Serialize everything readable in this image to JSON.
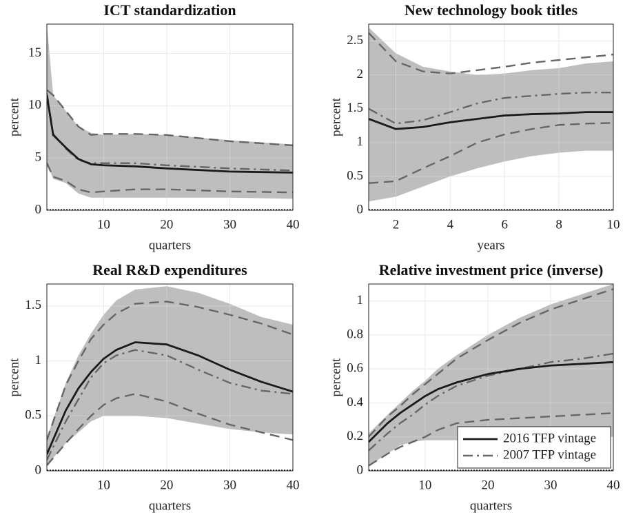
{
  "chart_data": [
    {
      "type": "line",
      "title": "ICT standardization",
      "xlabel": "quarters",
      "ylabel": "percent",
      "x": [
        1,
        2,
        4,
        6,
        8,
        10,
        15,
        20,
        30,
        40
      ],
      "xlim": [
        1,
        40
      ],
      "xticks": [
        10,
        20,
        30,
        40
      ],
      "ylim": [
        0,
        17.8
      ],
      "yticks": [
        0,
        5,
        10,
        15
      ],
      "grid": true,
      "band": {
        "color": "#bebebe",
        "upper": [
          17.8,
          11,
          9.5,
          8,
          7.4,
          7.2,
          7.3,
          7.2,
          6.7,
          6.3
        ],
        "lower": [
          4.5,
          3,
          2.6,
          1.6,
          1.2,
          1.2,
          1.2,
          1.2,
          1.2,
          1.1
        ]
      },
      "series": [
        {
          "color": "#1a1a1a",
          "style": "solid",
          "values": [
            11,
            7.2,
            6,
            4.9,
            4.4,
            4.3,
            4.2,
            4.0,
            3.7,
            3.6
          ]
        },
        {
          "color": "#666666",
          "style": "dashdot",
          "values": [
            11.2,
            7.3,
            5.9,
            4.8,
            4.5,
            4.5,
            4.5,
            4.3,
            4.0,
            3.8
          ]
        },
        {
          "color": "#666666",
          "style": "dashed",
          "values": [
            11.5,
            11,
            9.5,
            8,
            7.2,
            7.3,
            7.3,
            7.2,
            6.6,
            6.2
          ]
        },
        {
          "color": "#666666",
          "style": "dashed",
          "values": [
            4.5,
            3.2,
            2.8,
            2.0,
            1.7,
            1.8,
            2.0,
            2.0,
            1.8,
            1.7
          ]
        }
      ]
    },
    {
      "type": "line",
      "title": "New technology book titles",
      "xlabel": "years",
      "ylabel": "percent",
      "x": [
        1,
        2,
        3,
        4,
        5,
        6,
        7,
        8,
        9,
        10
      ],
      "xlim": [
        1,
        10
      ],
      "xticks": [
        2,
        4,
        6,
        8,
        10
      ],
      "ylim": [
        0,
        2.75
      ],
      "yticks": [
        0,
        0.5,
        1,
        1.5,
        2,
        2.5
      ],
      "grid": true,
      "band": {
        "color": "#bebebe",
        "upper": [
          2.7,
          2.32,
          2.12,
          2.05,
          2.0,
          2.02,
          2.07,
          2.1,
          2.17,
          2.2
        ],
        "lower": [
          0.13,
          0.2,
          0.35,
          0.5,
          0.62,
          0.72,
          0.8,
          0.85,
          0.88,
          0.88
        ]
      },
      "series": [
        {
          "color": "#1a1a1a",
          "style": "solid",
          "values": [
            1.35,
            1.2,
            1.23,
            1.3,
            1.35,
            1.4,
            1.42,
            1.43,
            1.45,
            1.45
          ]
        },
        {
          "color": "#666666",
          "style": "dashdot",
          "values": [
            1.5,
            1.28,
            1.33,
            1.45,
            1.58,
            1.66,
            1.69,
            1.72,
            1.74,
            1.74
          ]
        },
        {
          "color": "#666666",
          "style": "dashed",
          "values": [
            2.62,
            2.2,
            2.05,
            2.02,
            2.07,
            2.12,
            2.18,
            2.22,
            2.26,
            2.3
          ]
        },
        {
          "color": "#666666",
          "style": "dashed",
          "values": [
            0.4,
            0.43,
            0.62,
            0.8,
            1.0,
            1.12,
            1.2,
            1.26,
            1.28,
            1.29
          ]
        }
      ]
    },
    {
      "type": "line",
      "title": "Real R&D expenditures",
      "xlabel": "quarters",
      "ylabel": "percent",
      "x": [
        1,
        4,
        6,
        8,
        10,
        12,
        15,
        20,
        25,
        30,
        35,
        40
      ],
      "xlim": [
        1,
        40
      ],
      "xticks": [
        10,
        20,
        30,
        40
      ],
      "ylim": [
        0,
        1.7
      ],
      "yticks": [
        0,
        0.5,
        1,
        1.5
      ],
      "grid": true,
      "band": {
        "color": "#bebebe",
        "upper": [
          0.3,
          0.8,
          1.05,
          1.25,
          1.42,
          1.55,
          1.65,
          1.68,
          1.62,
          1.52,
          1.4,
          1.33
        ],
        "lower": [
          0.05,
          0.25,
          0.35,
          0.45,
          0.5,
          0.5,
          0.5,
          0.48,
          0.43,
          0.38,
          0.35,
          0.33
        ]
      },
      "series": [
        {
          "color": "#1a1a1a",
          "style": "solid",
          "values": [
            0.15,
            0.55,
            0.75,
            0.9,
            1.02,
            1.1,
            1.17,
            1.15,
            1.05,
            0.92,
            0.81,
            0.72
          ]
        },
        {
          "color": "#666666",
          "style": "dashdot",
          "values": [
            0.1,
            0.45,
            0.65,
            0.85,
            0.98,
            1.05,
            1.1,
            1.05,
            0.92,
            0.8,
            0.73,
            0.7
          ]
        },
        {
          "color": "#666666",
          "style": "dashed",
          "values": [
            0.28,
            0.78,
            1.0,
            1.2,
            1.33,
            1.43,
            1.52,
            1.54,
            1.49,
            1.42,
            1.34,
            1.24
          ]
        },
        {
          "color": "#666666",
          "style": "dashed",
          "values": [
            0.05,
            0.25,
            0.38,
            0.5,
            0.6,
            0.66,
            0.7,
            0.63,
            0.52,
            0.42,
            0.35,
            0.28
          ]
        }
      ]
    },
    {
      "type": "line",
      "title": "Relative investment price (inverse)",
      "xlabel": "quarters",
      "ylabel": "percent",
      "x": [
        1,
        4,
        6,
        8,
        10,
        12,
        15,
        20,
        25,
        30,
        35,
        40
      ],
      "xlim": [
        1,
        40
      ],
      "xticks": [
        10,
        20,
        30,
        40
      ],
      "ylim": [
        0,
        1.1
      ],
      "yticks": [
        0,
        0.2,
        0.4,
        0.6,
        0.8,
        1
      ],
      "grid": true,
      "legend": "lower right",
      "band": {
        "color": "#bebebe",
        "upper": [
          0.22,
          0.33,
          0.4,
          0.47,
          0.53,
          0.6,
          0.68,
          0.8,
          0.9,
          0.98,
          1.04,
          1.1
        ],
        "lower": [
          0.03,
          0.1,
          0.15,
          0.17,
          0.18,
          0.18,
          0.18,
          0.18,
          0.18,
          0.18,
          0.19,
          0.2
        ]
      },
      "series": [
        {
          "name": "2016 TFP vintage",
          "color": "#1a1a1a",
          "style": "solid",
          "values": [
            0.17,
            0.28,
            0.34,
            0.39,
            0.44,
            0.48,
            0.52,
            0.57,
            0.6,
            0.62,
            0.63,
            0.64
          ]
        },
        {
          "name": "2007 TFP vintage",
          "color": "#666666",
          "style": "dashdot",
          "values": [
            0.12,
            0.22,
            0.28,
            0.33,
            0.39,
            0.44,
            0.5,
            0.56,
            0.6,
            0.64,
            0.66,
            0.69
          ]
        },
        {
          "color": "#666666",
          "style": "dashed",
          "values": [
            0.2,
            0.32,
            0.38,
            0.45,
            0.51,
            0.57,
            0.66,
            0.77,
            0.87,
            0.95,
            1.01,
            1.07
          ]
        },
        {
          "color": "#666666",
          "style": "dashed",
          "values": [
            0.03,
            0.1,
            0.14,
            0.17,
            0.2,
            0.24,
            0.28,
            0.3,
            0.31,
            0.32,
            0.33,
            0.34
          ]
        }
      ]
    }
  ]
}
